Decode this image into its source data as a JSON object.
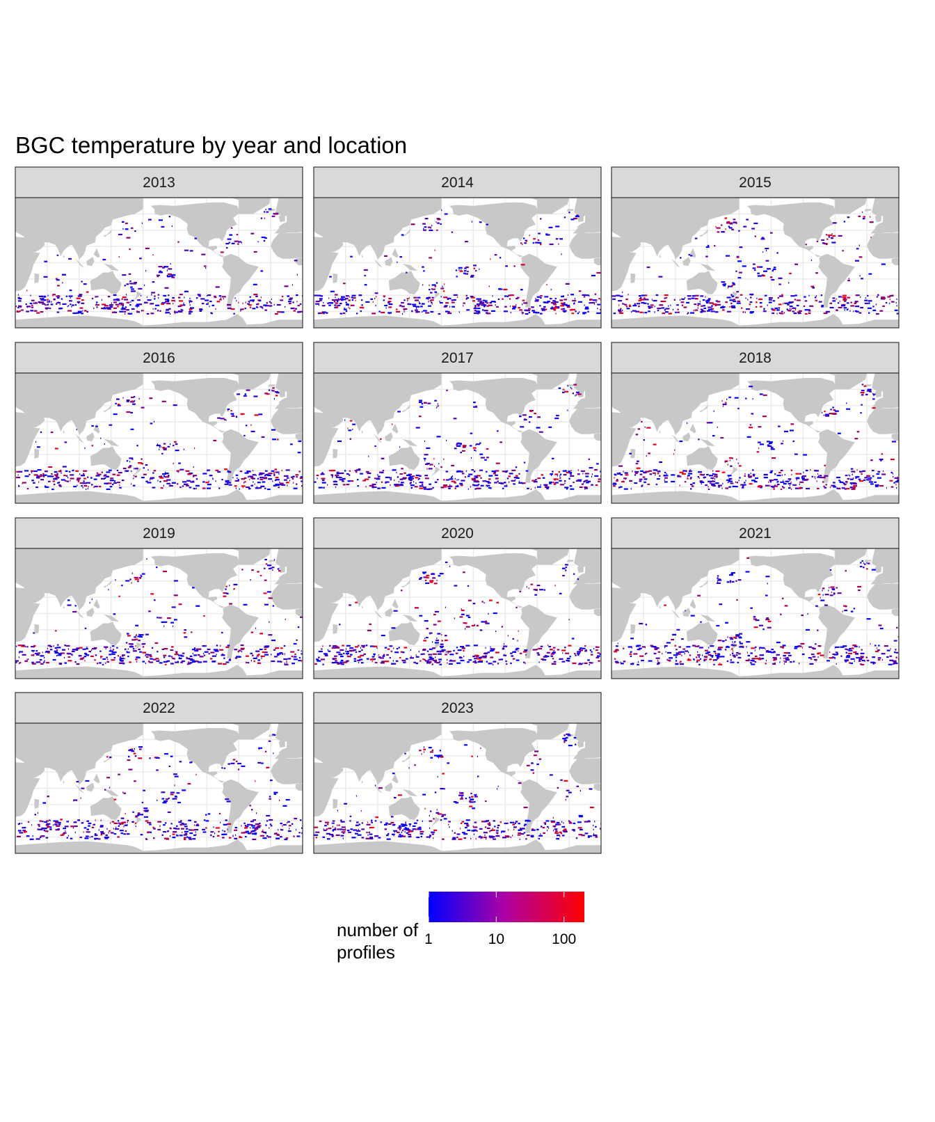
{
  "chart_data": {
    "type": "heatmap",
    "title": "BGC temperature by year and location",
    "facets": [
      "2013",
      "2014",
      "2015",
      "2016",
      "2017",
      "2018",
      "2019",
      "2020",
      "2021",
      "2022",
      "2023"
    ],
    "facet_seeds": [
      13,
      14,
      15,
      16,
      17,
      18,
      19,
      20,
      21,
      22,
      23
    ],
    "legend": {
      "title_line1": "number of",
      "title_line2": "profiles",
      "scale": "log10",
      "ticks": [
        "1",
        "10",
        "100"
      ],
      "tick_values": [
        1,
        10,
        100
      ],
      "range": [
        1,
        200
      ],
      "low_color": "#0000ff",
      "high_color": "#ff0000",
      "placement": "bottom"
    },
    "xlim": [
      20,
      380
    ],
    "ylim": [
      -80,
      80
    ],
    "land_color": "#c8c8c8",
    "strip_color": "#d9d9d9",
    "grid": true
  }
}
